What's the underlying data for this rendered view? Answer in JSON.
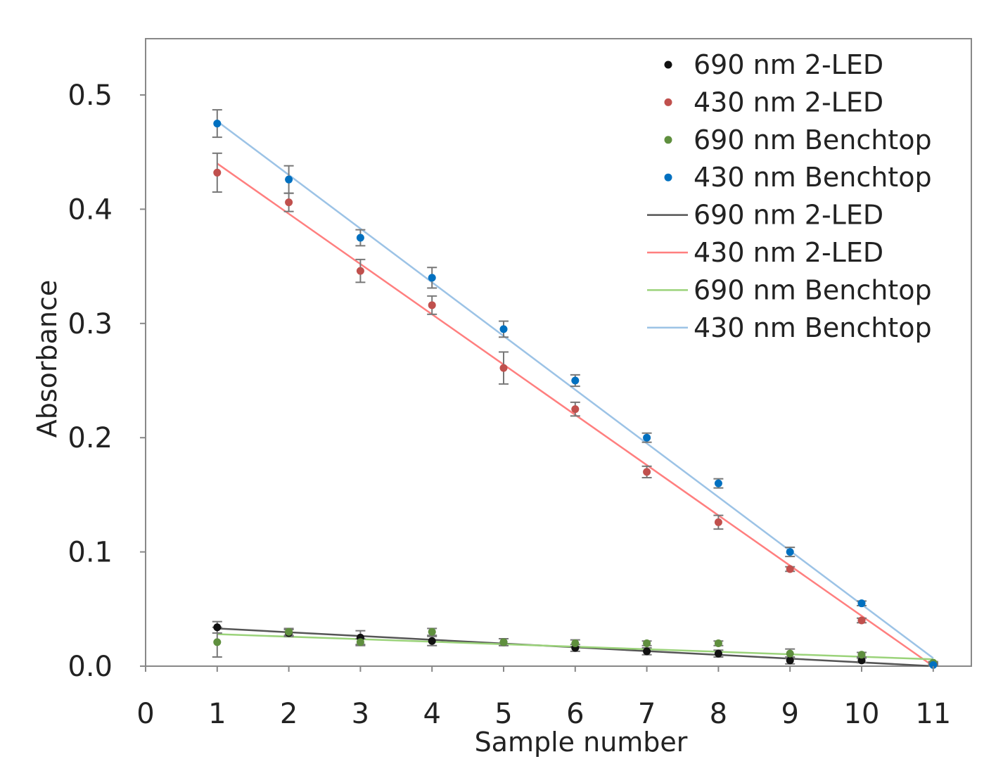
{
  "chart_data": {
    "type": "scatter",
    "title": "",
    "xlabel": "Sample number",
    "ylabel": "Absorbance",
    "xlim": [
      0,
      11
    ],
    "ylim": [
      0,
      0.55
    ],
    "xticks": [
      0,
      1,
      2,
      3,
      4,
      5,
      6,
      7,
      8,
      9,
      10,
      11
    ],
    "xtick_labels": [
      "0",
      "1",
      "2",
      "3",
      "4",
      "5",
      "6",
      "7",
      "8",
      "9",
      "10",
      "11"
    ],
    "yticks": [
      0,
      0.1,
      0.2,
      0.3,
      0.4,
      0.5
    ],
    "ytick_labels": [
      "0.0",
      "0.1",
      "0.2",
      "0.3",
      "0.4",
      "0.5"
    ],
    "grid": false,
    "legend_position": "top-right",
    "x": [
      1,
      2,
      3,
      4,
      5,
      6,
      7,
      8,
      9,
      10,
      11
    ],
    "series": [
      {
        "name": "690 nm 2-LED",
        "kind": "points",
        "color": "#111111",
        "values": [
          0.034,
          0.029,
          0.025,
          0.022,
          0.021,
          0.016,
          0.013,
          0.011,
          0.005,
          0.005,
          0.002
        ],
        "errors": [
          0.005,
          0.003,
          0.006,
          0.004,
          0.003,
          0.003,
          0.003,
          0.003,
          0.003,
          0.002,
          0.001
        ]
      },
      {
        "name": "430 nm 2-LED",
        "kind": "points",
        "color": "#c0504d",
        "values": [
          0.432,
          0.406,
          0.346,
          0.316,
          0.261,
          0.225,
          0.17,
          0.126,
          0.085,
          0.04,
          0.002
        ],
        "errors": [
          0.017,
          0.008,
          0.01,
          0.008,
          0.014,
          0.006,
          0.005,
          0.006,
          0.002,
          0.002,
          0.001
        ]
      },
      {
        "name": "690 nm Benchtop",
        "kind": "points",
        "color": "#5f8f3e",
        "values": [
          0.021,
          0.03,
          0.021,
          0.03,
          0.021,
          0.02,
          0.02,
          0.02,
          0.011,
          0.01,
          0.003
        ],
        "errors": [
          0.013,
          0.003,
          0.003,
          0.003,
          0.003,
          0.003,
          0.002,
          0.002,
          0.004,
          0.002,
          0.001
        ]
      },
      {
        "name": "430 nm Benchtop",
        "kind": "points",
        "color": "#0070c0",
        "values": [
          0.475,
          0.426,
          0.375,
          0.34,
          0.295,
          0.25,
          0.2,
          0.16,
          0.1,
          0.055,
          0.001
        ],
        "errors": [
          0.012,
          0.012,
          0.007,
          0.009,
          0.007,
          0.005,
          0.004,
          0.004,
          0.004,
          0.002,
          0.001
        ]
      },
      {
        "name": "690 nm 2-LED",
        "kind": "line",
        "color": "#555555",
        "start": [
          1,
          0.033
        ],
        "end": [
          11,
          0.0
        ]
      },
      {
        "name": "430 nm 2-LED",
        "kind": "line",
        "color": "#ff7f7f",
        "start": [
          1,
          0.44
        ],
        "end": [
          11,
          0.0
        ]
      },
      {
        "name": "690 nm Benchtop",
        "kind": "line",
        "color": "#9bd37a",
        "start": [
          1,
          0.028
        ],
        "end": [
          11,
          0.006
        ]
      },
      {
        "name": "430 nm Benchtop",
        "kind": "line",
        "color": "#9cc3e6",
        "start": [
          1,
          0.477
        ],
        "end": [
          11,
          0.007
        ]
      }
    ]
  }
}
